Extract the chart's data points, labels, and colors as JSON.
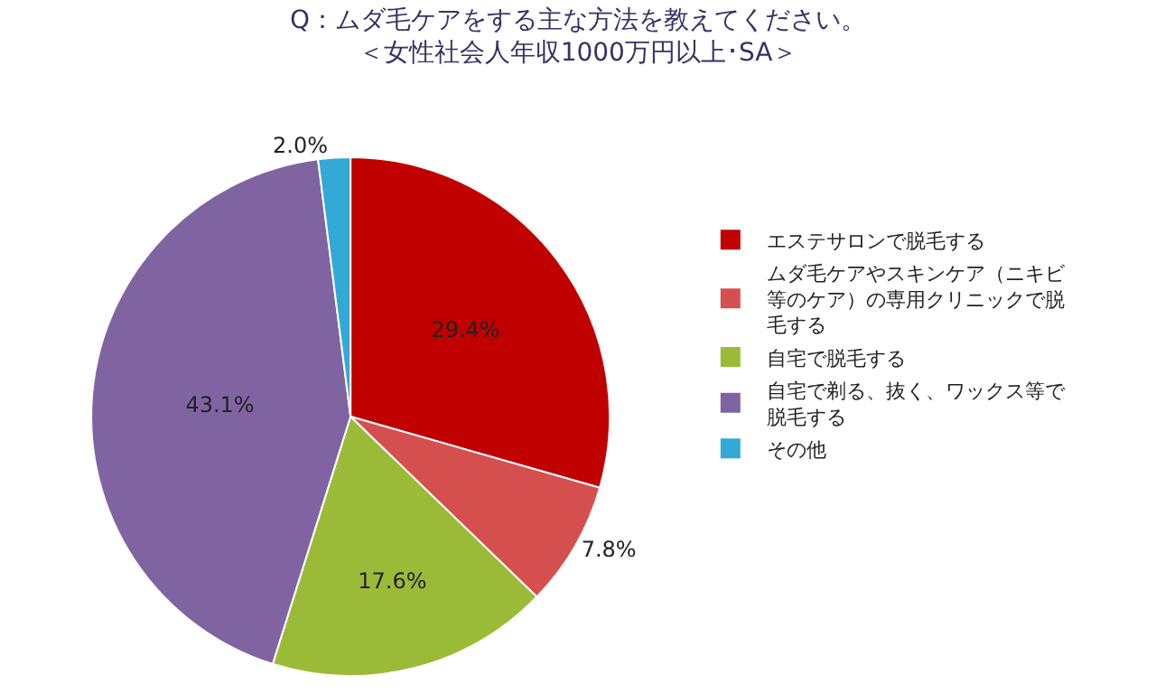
{
  "chart_data": {
    "type": "pie",
    "title": "Q：ムダ毛ケアをする主な方法を教えてください。",
    "subtitle": "＜女性社会人年収1000万円以上･SA＞",
    "categories": [
      "エステサロンで脱毛する",
      "ムダ毛ケアやスキンケア（ニキビ等のケア）の専用クリニックで脱毛する",
      "自宅で脱毛する",
      "自宅で剃る、抜く、ワックス等で脱毛する",
      "その他"
    ],
    "values": [
      29.4,
      7.8,
      17.6,
      43.1,
      2.0
    ],
    "value_labels": [
      "29.4%",
      "7.8%",
      "17.6%",
      "43.1%",
      "2.0%"
    ],
    "colors": [
      "#c00000",
      "#d64f4f",
      "#9bbb38",
      "#8064a2",
      "#33aad6"
    ],
    "legend": "right"
  }
}
